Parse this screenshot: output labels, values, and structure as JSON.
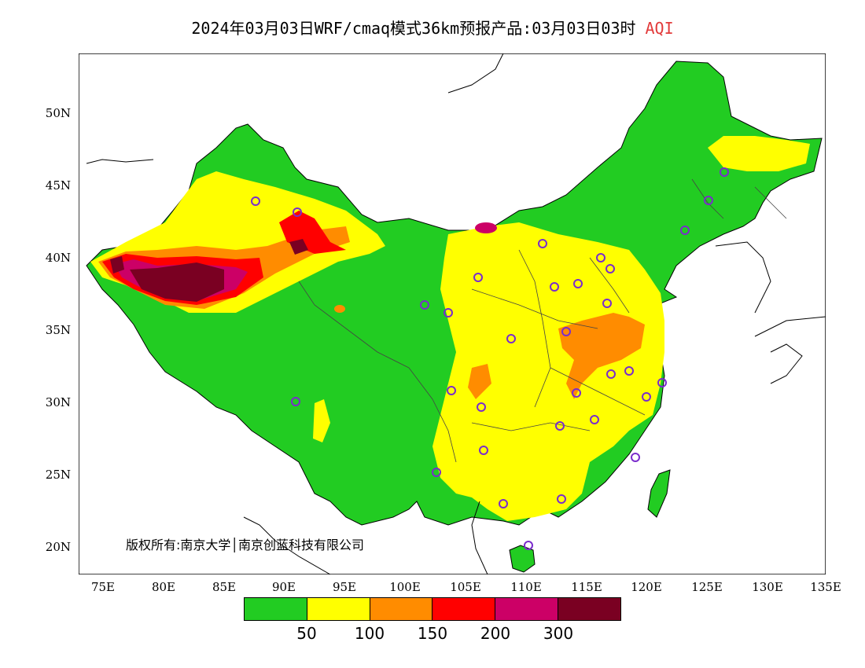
{
  "title": {
    "main": "2024年03月03日WRF/cmaq模式36km预报产品:03月03日03时",
    "variable": "AQI"
  },
  "copyright": "版权所有:南京大学│南京创蓝科技有限公司",
  "axes": {
    "lat_labels": [
      "50N",
      "45N",
      "40N",
      "35N",
      "30N",
      "25N",
      "20N"
    ],
    "lon_labels": [
      "75E",
      "80E",
      "85E",
      "90E",
      "95E",
      "100E",
      "105E",
      "110E",
      "115E",
      "120E",
      "125E",
      "130E",
      "135E"
    ]
  },
  "legend": {
    "colors": [
      "#22cc22",
      "#ffff00",
      "#ff8c00",
      "#ff0000",
      "#cc0066",
      "#7a0022"
    ],
    "values": [
      "50",
      "100",
      "150",
      "200",
      "300"
    ]
  },
  "colors": {
    "land_outline": "#000000",
    "province_line": "#444444",
    "station_marker": "#7a2ccc"
  }
}
